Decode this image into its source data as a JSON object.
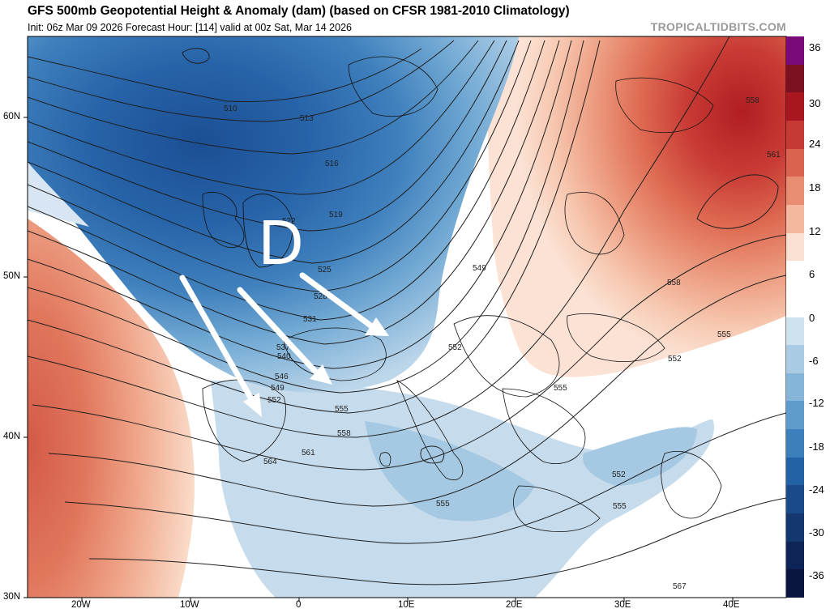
{
  "header": {
    "title": "GFS 500mb Geopotential Height & Anomaly (dam) (based on CFSR 1981-2010 Climatology)",
    "subtitle": "Init: 06z Mar 09 2026   Forecast Hour: [114]   valid at 00z Sat, Mar 14 2026",
    "credit": "TROPICALTIDBITS.COM"
  },
  "map": {
    "annotation_letter": "D",
    "contour_labels": [
      {
        "text": "510"
      },
      {
        "text": "513"
      },
      {
        "text": "516"
      },
      {
        "text": "519"
      },
      {
        "text": "522"
      },
      {
        "text": "525"
      },
      {
        "text": "528"
      },
      {
        "text": "531"
      },
      {
        "text": "537"
      },
      {
        "text": "540"
      },
      {
        "text": "546"
      },
      {
        "text": "549"
      },
      {
        "text": "552"
      },
      {
        "text": "555"
      },
      {
        "text": "558"
      },
      {
        "text": "561"
      },
      {
        "text": "564"
      },
      {
        "text": "549"
      },
      {
        "text": "552"
      },
      {
        "text": "555"
      },
      {
        "text": "558"
      },
      {
        "text": "561"
      },
      {
        "text": "558"
      },
      {
        "text": "555"
      },
      {
        "text": "552"
      },
      {
        "text": "552"
      },
      {
        "text": "555"
      },
      {
        "text": "555"
      },
      {
        "text": "567"
      }
    ],
    "lat_labels": [
      "60N",
      "50N",
      "40N",
      "30N"
    ],
    "lon_labels": [
      "20W",
      "10W",
      "0",
      "10E",
      "20E",
      "30E",
      "40E"
    ]
  },
  "colorbar": {
    "labels": [
      "36",
      "30",
      "24",
      "18",
      "12",
      "6",
      "0",
      "-6",
      "-12",
      "-18",
      "-24",
      "-30",
      "-36"
    ],
    "colors": [
      "#7a0a7a",
      "#7a1020",
      "#a8161f",
      "#c53a35",
      "#d9634e",
      "#e88c72",
      "#f3b89e",
      "#fae0d2",
      "#ffffff",
      "#ffffff",
      "#cfe2ef",
      "#a9cce4",
      "#85b6da",
      "#5f9ccc",
      "#3b7fbb",
      "#2462a6",
      "#1a4a8a",
      "#143770",
      "#0e2456",
      "#0a1640"
    ]
  }
}
